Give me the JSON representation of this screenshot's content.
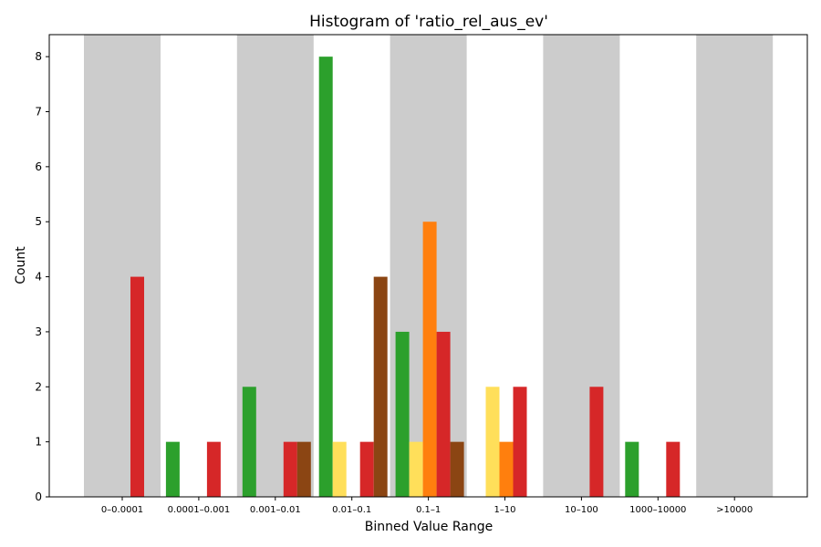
{
  "chart_data": {
    "type": "bar",
    "title": "Histogram of 'ratio_rel_aus_ev'",
    "xlabel": "Binned Value Range",
    "ylabel": "Count",
    "ylim": [
      0,
      8.4
    ],
    "yticks": [
      0,
      1,
      2,
      3,
      4,
      5,
      6,
      7,
      8
    ],
    "grid": false,
    "legend": "none",
    "band_color": "#cccccc",
    "categories": [
      "0–0.0001",
      "0.0001–0.001",
      "0.001–0.01",
      "0.01–0.1",
      "0.1–1",
      "1–10",
      "10–100",
      "1000–10000",
      ">10000"
    ],
    "shaded_bands": [
      "0–0.0001",
      "0.001–0.01",
      "0.1–1",
      "10–100",
      ">10000"
    ],
    "series": [
      {
        "color": "#2ca02c",
        "values": [
          0,
          1,
          2,
          8,
          3,
          0,
          0,
          1,
          0
        ]
      },
      {
        "color": "#ffdf5a",
        "values": [
          0,
          0,
          0,
          1,
          1,
          2,
          0,
          0,
          0
        ]
      },
      {
        "color": "#ff7f0e",
        "values": [
          0,
          0,
          0,
          0,
          5,
          1,
          0,
          0,
          0
        ]
      },
      {
        "color": "#d62728",
        "values": [
          4,
          1,
          1,
          1,
          3,
          2,
          2,
          1,
          0
        ]
      },
      {
        "color": "#8b4513",
        "values": [
          0,
          0,
          1,
          4,
          1,
          0,
          0,
          0,
          0
        ]
      }
    ]
  }
}
